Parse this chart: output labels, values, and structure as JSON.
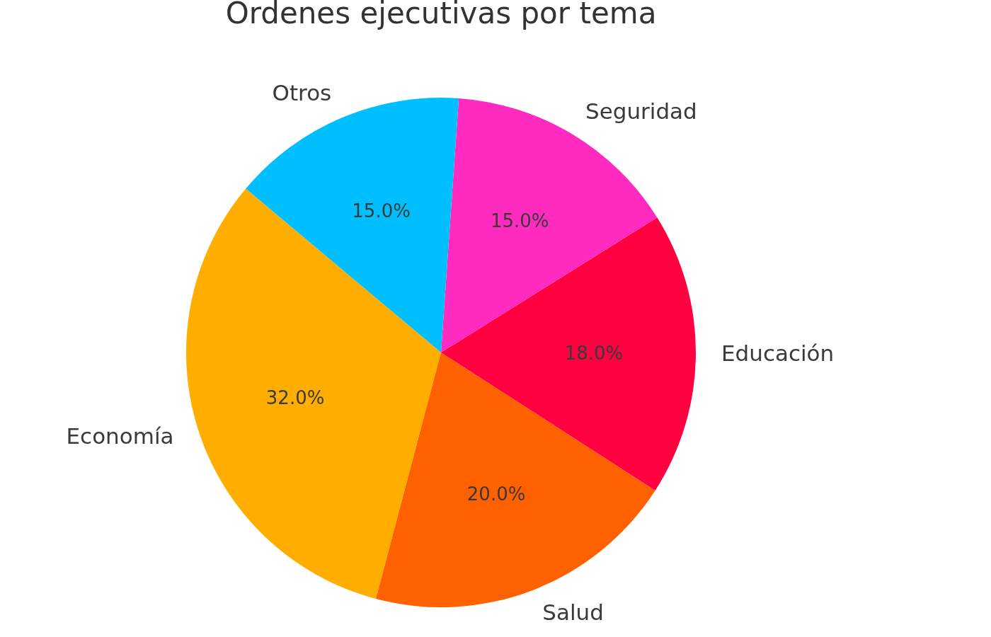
{
  "chart_data": {
    "type": "pie",
    "title": "Ordenes ejecutivas por tema",
    "categories": [
      "Economía",
      "Salud",
      "Educación",
      "Seguridad",
      "Otros"
    ],
    "values": [
      32,
      20,
      18,
      15,
      15
    ],
    "colors": [
      "#ffae00",
      "#ff6000",
      "#ff0040",
      "#ff2ac0",
      "#00bfff"
    ],
    "value_labels": [
      "32.0%",
      "20.0%",
      "18.0%",
      "15.0%",
      "15.0%"
    ]
  }
}
